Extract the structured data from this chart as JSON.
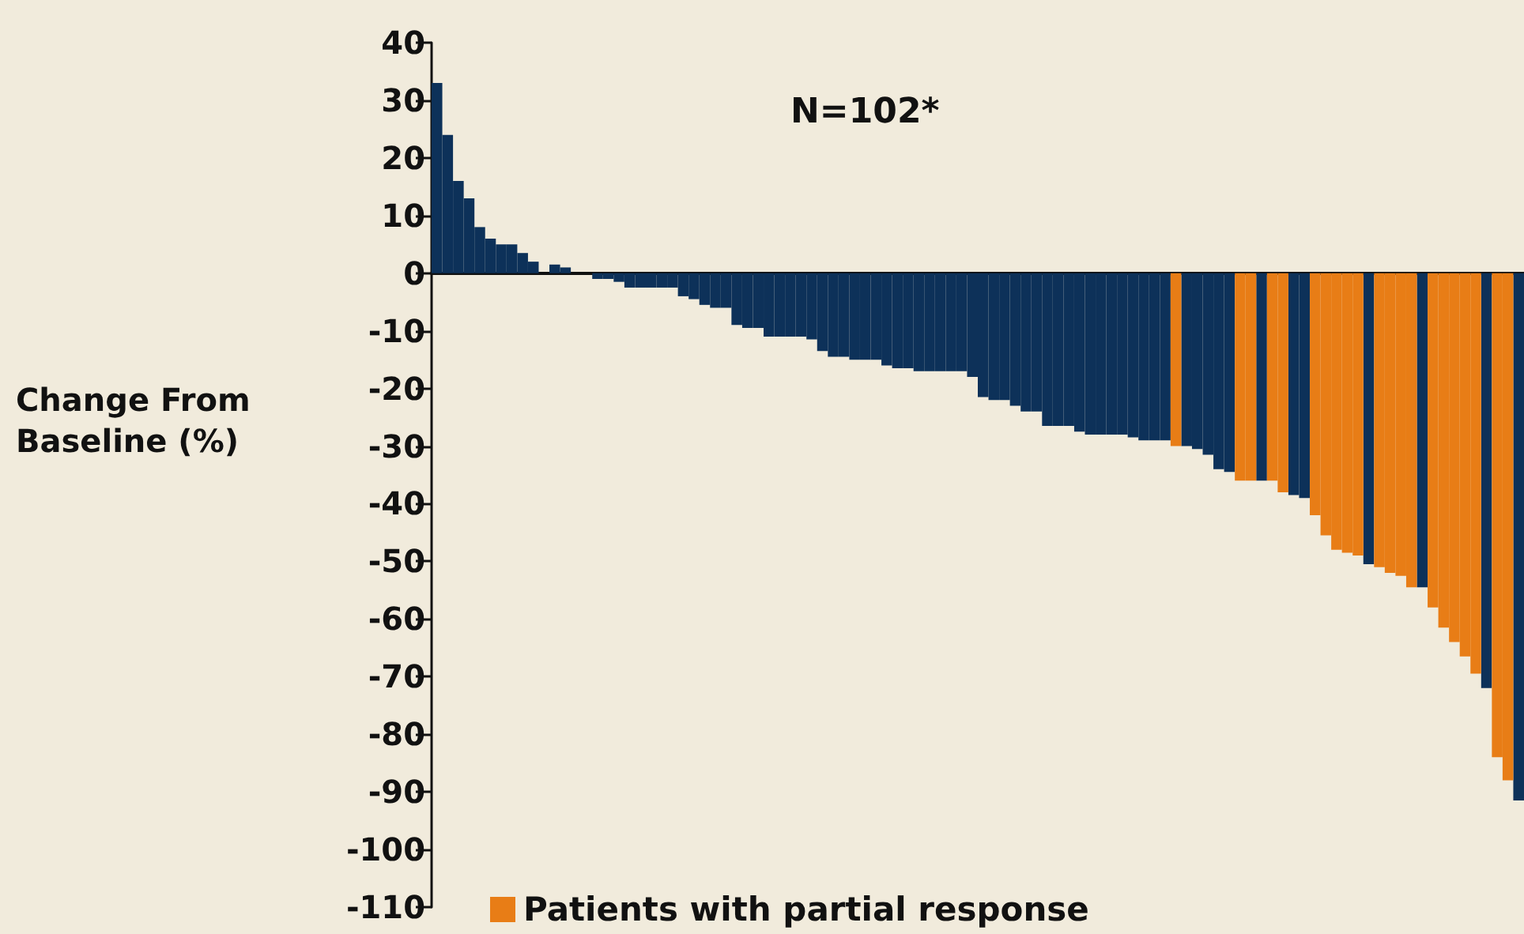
{
  "chart_data": {
    "type": "bar",
    "ylabel": "Change From Baseline (%)",
    "annotations": [
      "N=102*"
    ],
    "categories": [
      null,
      null,
      null,
      null,
      null,
      null,
      null,
      null,
      null,
      null,
      null,
      null,
      null,
      null,
      null,
      null,
      null,
      null,
      null,
      null,
      null,
      null,
      null,
      null,
      null,
      null,
      null,
      null,
      null,
      null,
      null,
      null,
      null,
      null,
      null,
      null,
      null,
      null,
      null,
      null,
      null,
      null,
      null,
      null,
      null,
      null,
      null,
      null,
      null,
      null,
      null,
      null,
      null,
      null,
      null,
      null,
      null,
      null,
      null,
      null,
      null,
      null,
      null,
      null,
      null,
      null,
      null,
      null,
      null,
      null,
      null,
      null,
      null,
      null,
      null,
      null,
      null,
      null,
      null,
      null,
      null,
      null,
      null,
      null,
      null,
      null,
      null,
      null,
      null,
      null,
      null,
      null,
      null,
      null,
      null,
      null,
      null,
      null,
      null,
      null,
      null,
      null
    ],
    "series": [
      {
        "color": "#0d3159",
        "values": [
          33,
          24,
          16,
          13,
          8,
          6,
          5,
          5,
          3.5,
          2,
          0,
          1.5,
          1,
          0,
          0,
          -1,
          -1,
          -1.5,
          -2.5,
          -2.5,
          -2.5,
          -2.5,
          -2.5,
          -4,
          -4.5,
          -5.5,
          -6,
          -6,
          -9,
          -9.5,
          -9.5,
          -11,
          -11,
          -11,
          -11,
          -11.5,
          -13.5,
          -14.5,
          -14.5,
          -15,
          -15,
          -15,
          -16,
          -16.5,
          -16.5,
          -17,
          -17,
          -17,
          -17,
          -17,
          -18,
          -21.5,
          -22,
          -22,
          -23,
          -24,
          -24,
          -26.5,
          -26.5,
          -26.5,
          -27.5,
          -28,
          -28,
          -28,
          -28,
          -28.5,
          -29,
          -29,
          -29,
          null,
          -30,
          -30.5,
          -31.5,
          -34,
          -34.5,
          null,
          null,
          -36,
          null,
          null,
          -38.5,
          -39,
          null,
          null,
          null,
          null,
          null,
          -50.5,
          null,
          null,
          null,
          null,
          -54.5,
          null,
          null,
          null,
          null,
          null,
          -72,
          null,
          null,
          -91.5
        ]
      },
      {
        "name": "Patients with partial response",
        "color": "#e87d16",
        "values": [
          null,
          null,
          null,
          null,
          null,
          null,
          null,
          null,
          null,
          null,
          null,
          null,
          null,
          null,
          null,
          null,
          null,
          null,
          null,
          null,
          null,
          null,
          null,
          null,
          null,
          null,
          null,
          null,
          null,
          null,
          null,
          null,
          null,
          null,
          null,
          null,
          null,
          null,
          null,
          null,
          null,
          null,
          null,
          null,
          null,
          null,
          null,
          null,
          null,
          null,
          null,
          null,
          null,
          null,
          null,
          null,
          null,
          null,
          null,
          null,
          null,
          null,
          null,
          null,
          null,
          null,
          null,
          null,
          null,
          -30,
          null,
          null,
          null,
          null,
          null,
          -36,
          -36,
          null,
          -36,
          -38,
          null,
          null,
          -42,
          -45.5,
          -48,
          -48.5,
          -49,
          null,
          -51,
          -52,
          -52.5,
          -54.5,
          null,
          -58,
          -61.5,
          -64,
          -66.5,
          -69.5,
          null,
          -84,
          -88,
          null
        ]
      }
    ],
    "ylim": [
      -110,
      40
    ],
    "yticks": [
      40,
      30,
      20,
      10,
      0,
      -10,
      -20,
      -30,
      -40,
      -50,
      -60,
      -70,
      -80,
      -90,
      -100,
      -110
    ],
    "tick_labels": "y",
    "legend": "bottom"
  }
}
